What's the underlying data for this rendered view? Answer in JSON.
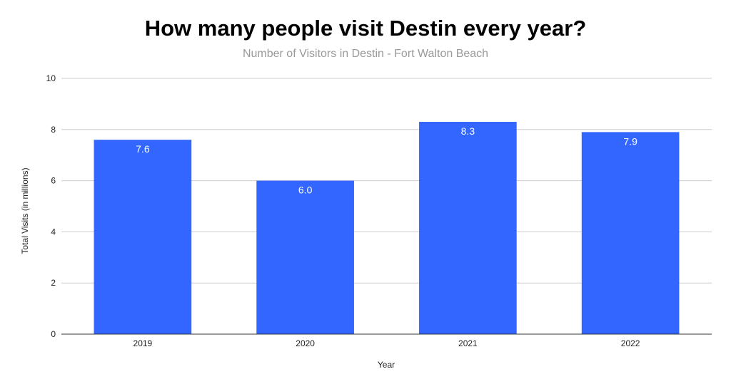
{
  "chart_data": {
    "type": "bar",
    "title": "How many people visit Destin every year?",
    "subtitle": "Number of Visitors in Destin - Fort Walton Beach",
    "xlabel": "Year",
    "ylabel": "Total Visits (in millions)",
    "categories": [
      "2019",
      "2020",
      "2021",
      "2022"
    ],
    "values": [
      7.6,
      6.0,
      8.3,
      7.9
    ],
    "data_labels": [
      "7.6",
      "6.0",
      "8.3",
      "7.9"
    ],
    "ylim": [
      0,
      10
    ],
    "yticks": [
      0,
      2,
      4,
      6,
      8,
      10
    ],
    "grid": true,
    "legend": "none",
    "colors": {
      "bar": "#3366ff",
      "grid": "#cccccc",
      "axis": "#333333",
      "data_label": "#ffffff"
    }
  }
}
